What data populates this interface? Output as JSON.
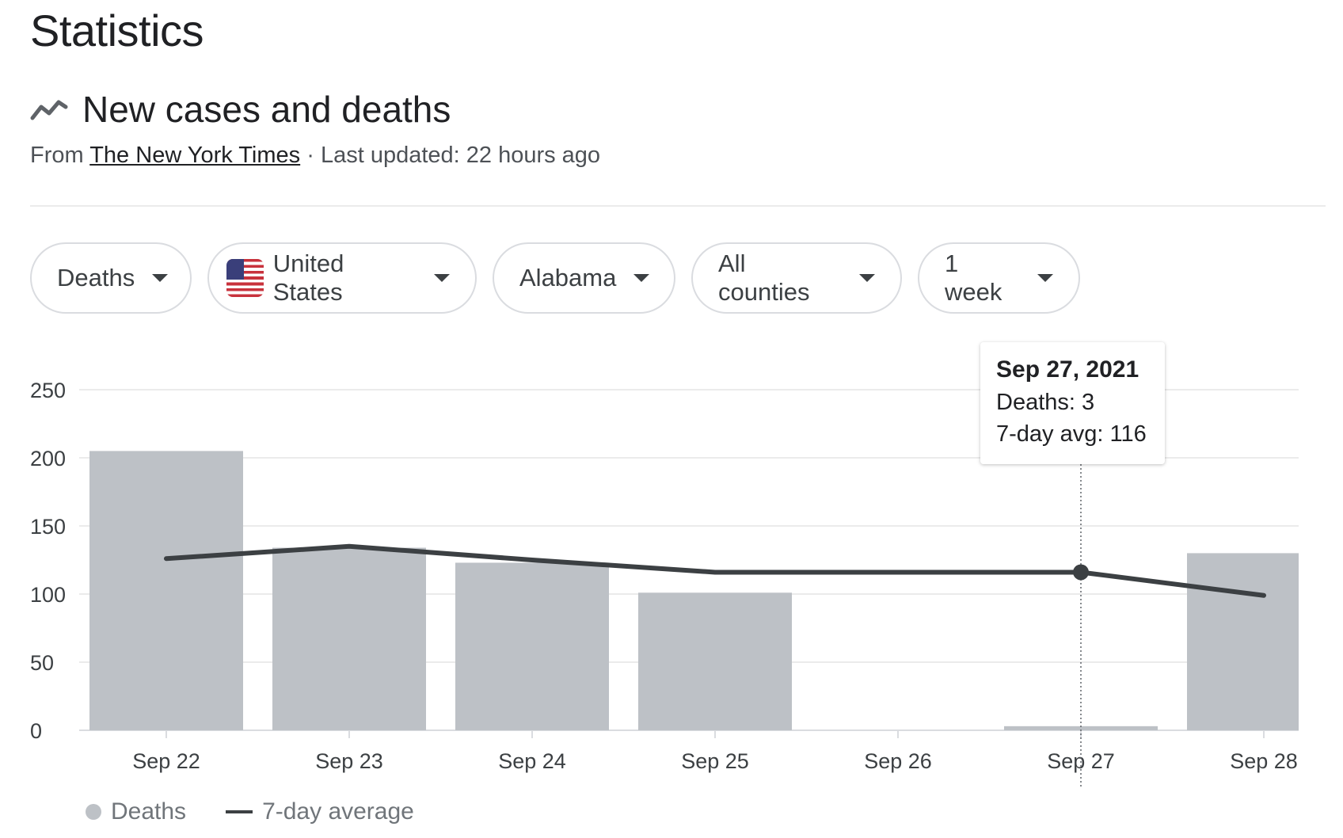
{
  "page": {
    "title": "Statistics"
  },
  "section": {
    "icon": "trending-line-icon",
    "title": "New cases and deaths",
    "source_prefix": "From",
    "source_link": "The New York Times",
    "updated": "· Last updated: 22 hours ago"
  },
  "filters": {
    "metric": "Deaths",
    "country": "United States",
    "country_icon": "us-flag-icon",
    "region": "Alabama",
    "county": "All counties",
    "range": "1 week"
  },
  "colors": {
    "bars": "#bdc1c6",
    "line": "#3c4043",
    "grid": "#ebebeb"
  },
  "chart_data": {
    "type": "bar",
    "categories": [
      "Sep 22",
      "Sep 23",
      "Sep 24",
      "Sep 25",
      "Sep 26",
      "Sep 27",
      "Sep 28"
    ],
    "series": [
      {
        "name": "Deaths",
        "type": "bar",
        "values": [
          205,
          134,
          123,
          101,
          0,
          3,
          130
        ]
      },
      {
        "name": "7-day average",
        "type": "line",
        "values": [
          126,
          135,
          125,
          116,
          116,
          116,
          99
        ]
      }
    ],
    "yticks": [
      0,
      50,
      100,
      150,
      200,
      250
    ],
    "ylim": [
      0,
      250
    ],
    "grid": true,
    "legend_position": "bottom-left",
    "highlight_index": 5
  },
  "tooltip": {
    "date": "Sep 27, 2021",
    "deaths": "Deaths: 3",
    "avg": "7-day avg: 116"
  },
  "legend": {
    "deaths": "Deaths",
    "avg": "7-day average"
  }
}
